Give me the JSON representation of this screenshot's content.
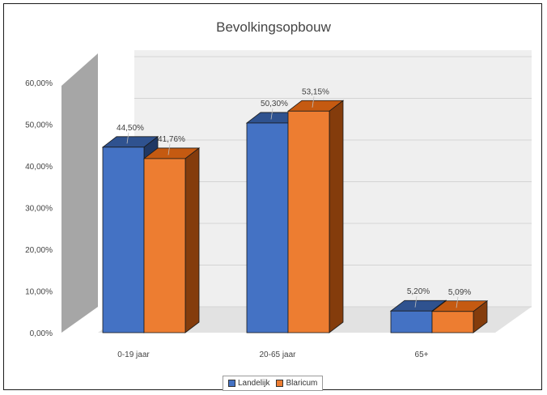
{
  "chart_data": {
    "type": "bar",
    "title": "Bevolkingsopbouw",
    "categories": [
      "0-19 jaar",
      "20-65 jaar",
      "65+"
    ],
    "series": [
      {
        "name": "Landelijk",
        "values": [
          44.5,
          50.3,
          5.2
        ],
        "labels": [
          "44,50%",
          "50,30%",
          "5,20%"
        ],
        "color": "#4472c4"
      },
      {
        "name": "Blaricum",
        "values": [
          41.76,
          53.15,
          5.09
        ],
        "labels": [
          "41,76%",
          "53,15%",
          "5,09%"
        ],
        "color": "#ed7d31"
      }
    ],
    "y_ticks": [
      "0,00%",
      "10,00%",
      "20,00%",
      "30,00%",
      "40,00%",
      "50,00%",
      "60,00%"
    ],
    "ylim": [
      0,
      60
    ],
    "grid": true,
    "legend_position": "bottom",
    "style": "3d-clustered-column"
  }
}
